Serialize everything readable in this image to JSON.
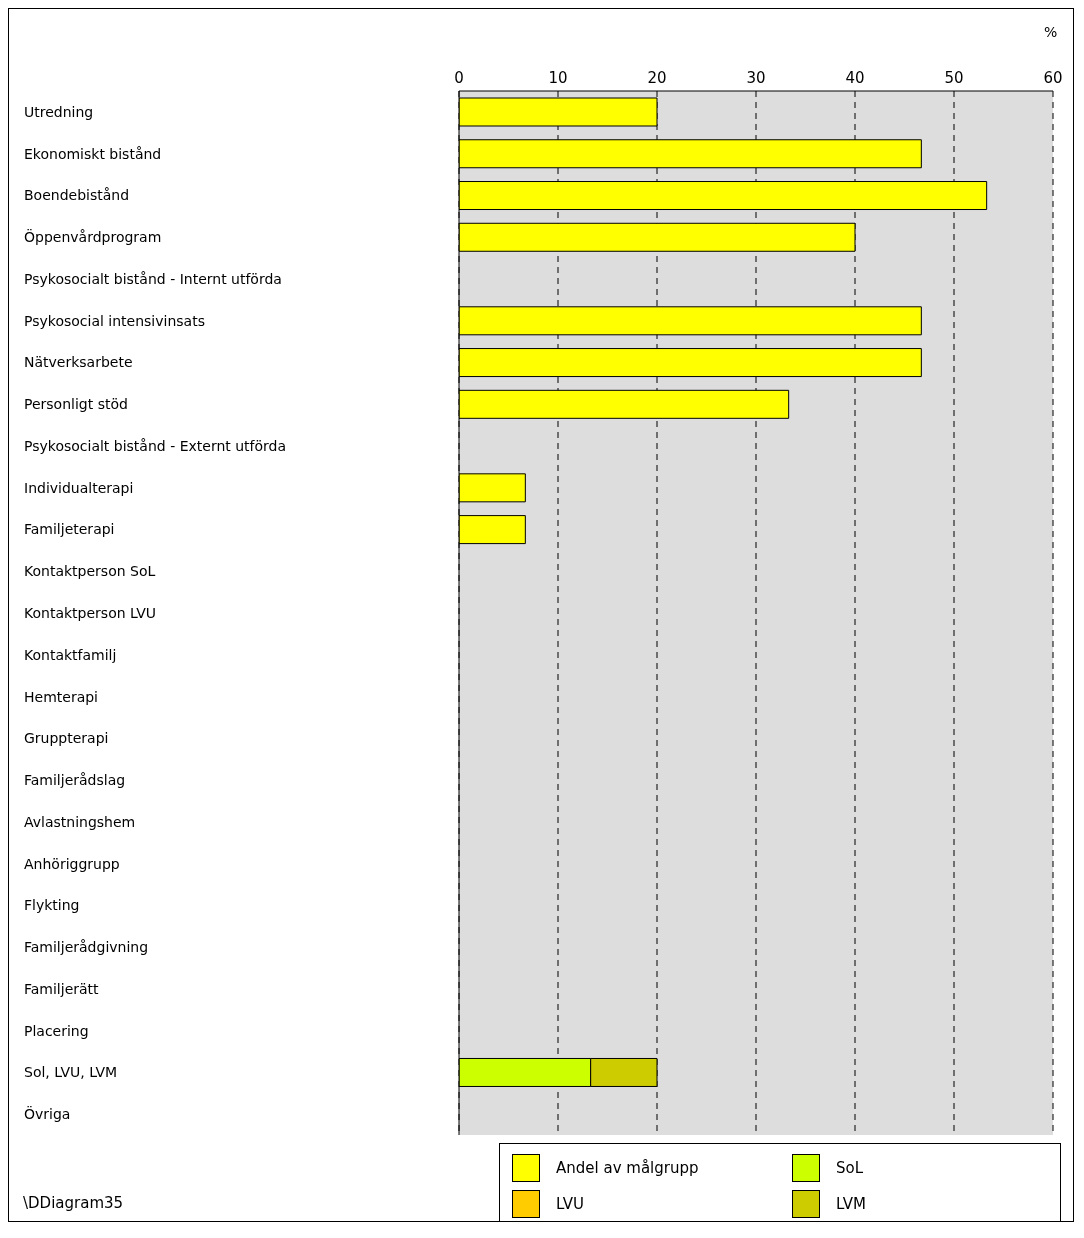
{
  "chart_data": {
    "type": "bar",
    "orientation": "horizontal",
    "stacked": true,
    "x2label": "%",
    "categories": [
      "Utredning",
      "Ekonomiskt bistånd",
      "Boendebistånd",
      "Öppenvårdprogram",
      "Psykosocialt bistånd - Internt utförda",
      "Psykosocial intensivinsats",
      "Nätverksarbete",
      "Personligt stöd",
      "Psykosocialt bistånd - Externt utförda",
      "Individualterapi",
      "Familjeterapi",
      "Kontaktperson SoL",
      "Kontaktperson LVU",
      "Kontaktfamilj",
      "Hemterapi",
      "Gruppterapi",
      "Familjerådslag",
      "Avlastningshem",
      "Anhöriggrupp",
      "Flykting",
      "Familjerådgivning",
      "Familjerätt",
      "Placering",
      "Sol, LVU, LVM",
      "Övriga"
    ],
    "series": [
      {
        "name": "Andel av målgrupp",
        "axis": "x2",
        "color": "#ffff00",
        "values": [
          20,
          46.7,
          53.3,
          40,
          null,
          46.7,
          46.7,
          33.3,
          null,
          6.7,
          6.7,
          null,
          null,
          null,
          null,
          null,
          null,
          null,
          null,
          null,
          null,
          null,
          null,
          null,
          null
        ]
      },
      {
        "name": "SoL",
        "axis": "x2",
        "color": "#ccff00",
        "values": [
          null,
          null,
          null,
          null,
          null,
          null,
          null,
          null,
          null,
          null,
          null,
          null,
          null,
          null,
          null,
          null,
          null,
          null,
          null,
          null,
          null,
          null,
          null,
          13.3,
          null
        ]
      },
      {
        "name": "LVU",
        "axis": "x2",
        "color": "#ffcc00",
        "values": [
          null,
          null,
          null,
          null,
          null,
          null,
          null,
          null,
          null,
          null,
          null,
          null,
          null,
          null,
          null,
          null,
          null,
          null,
          null,
          null,
          null,
          null,
          null,
          null,
          null
        ]
      },
      {
        "name": "LVM",
        "axis": "x2",
        "color": "#cccc00",
        "values": [
          null,
          null,
          null,
          null,
          null,
          null,
          null,
          null,
          null,
          null,
          null,
          null,
          null,
          null,
          null,
          null,
          null,
          null,
          null,
          null,
          null,
          null,
          null,
          6.7,
          null
        ]
      }
    ],
    "x2lim": [
      0,
      60
    ],
    "x2ticks": [
      0,
      10,
      20,
      30,
      40,
      50,
      60
    ],
    "grid": "x",
    "legend": "bottom",
    "annotations": [
      "\\DDiagram35"
    ]
  }
}
